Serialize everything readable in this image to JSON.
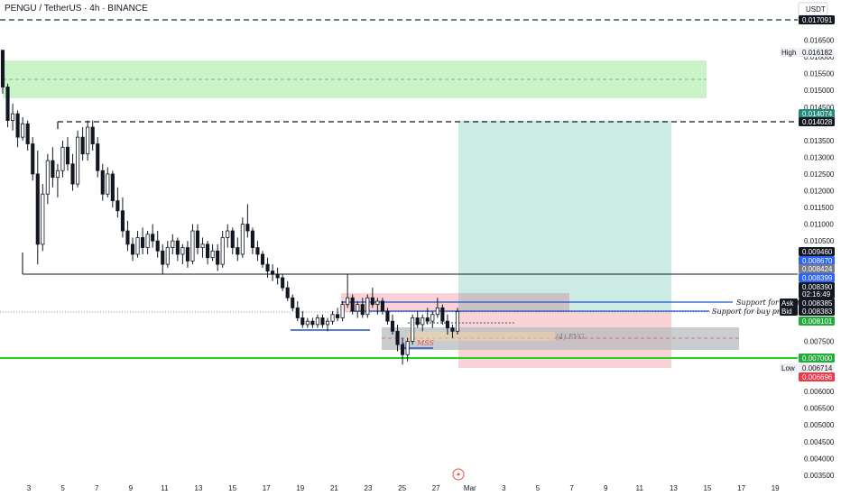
{
  "header": {
    "symbol_line": "PENGU / TetherUS · 4h · BINANCE",
    "currency": "USDT"
  },
  "colors": {
    "up_candle": "#131722",
    "down_candle": "#131722",
    "demand_zone": "#b8efb8",
    "supply_zone": "#f7c1c8",
    "target_zone": "#bfe6df",
    "stop_zone": "#f9c8cc",
    "fvg_zone": "#c8ccd0",
    "green_line": "#22d41c",
    "blue_line": "#1e53c7",
    "teal_tag": "#22897b",
    "red_tag": "#f23645",
    "green_tag": "#22ab3a",
    "blue_tag": "#2962ff",
    "gray_tag": "#787b86"
  },
  "chart_data": {
    "type": "candlestick",
    "timeframe": "4h",
    "x_tick_labels": [
      "3",
      "5",
      "7",
      "9",
      "11",
      "13",
      "15",
      "17",
      "19",
      "21",
      "23",
      "25",
      "27",
      "Mar",
      "3",
      "5",
      "7",
      "9",
      "11",
      "13",
      "15",
      "17",
      "19"
    ],
    "y_tick_labels": [
      "0.016500",
      "0.016000",
      "0.015500",
      "0.015000",
      "0.014500",
      "0.013500",
      "0.013000",
      "0.012500",
      "0.012000",
      "0.011500",
      "0.011000",
      "0.010500",
      "0.007500",
      "0.006000",
      "0.005500",
      "0.005000",
      "0.004500",
      "0.004000",
      "0.003500"
    ],
    "y_range": [
      0.0033,
      0.0174
    ],
    "price_tags": [
      {
        "text": "0.017091",
        "value": 0.017091,
        "style": "black"
      },
      {
        "text": "0.016182",
        "value": 0.016182,
        "style": "plain",
        "side_label": "High"
      },
      {
        "text": "0.014074",
        "value": 0.014074,
        "style": "teal"
      },
      {
        "text": "0.014028",
        "value": 0.014028,
        "style": "black"
      },
      {
        "text": "0.009460",
        "value": 0.00946,
        "style": "black"
      },
      {
        "text": "0.008670",
        "value": 0.00867,
        "style": "blue"
      },
      {
        "text": "0.008424",
        "value": 0.008424,
        "style": "gray"
      },
      {
        "text": "0.008399",
        "value": 0.008399,
        "style": "blue"
      },
      {
        "text": "0.008390",
        "value": 0.00839,
        "style": "black"
      },
      {
        "text": "02:16:49",
        "value": 0.00815,
        "style": "black"
      },
      {
        "text": "0.008385",
        "value": 0.008385,
        "style": "black",
        "side_label": "Ask"
      },
      {
        "text": "0.008383",
        "value": 0.008383,
        "style": "black",
        "side_label": "Bid"
      },
      {
        "text": "0.008101",
        "value": 0.008101,
        "style": "green"
      },
      {
        "text": "0.007000",
        "value": 0.007,
        "style": "green"
      },
      {
        "text": "0.006714",
        "value": 0.006714,
        "style": "plain",
        "side_label": "Low"
      },
      {
        "text": "0.006696",
        "value": 0.006696,
        "style": "red"
      }
    ],
    "horizontal_lines": [
      {
        "value": 0.017091,
        "style": "dashed",
        "color": "#0b3d1e"
      },
      {
        "value": 0.014028,
        "style": "dashed",
        "color": "#131722"
      },
      {
        "value": 0.00946,
        "style": "solid",
        "color": "#131722"
      },
      {
        "value": 0.007,
        "style": "solid",
        "color": "#22d41c"
      },
      {
        "value": 0.00839,
        "style": "dotted",
        "color": "#787b86"
      }
    ],
    "annotations": [
      {
        "text": "Support for buy progr",
        "value": 0.00867
      },
      {
        "text": "Support for buy progr",
        "value": 0.00838
      },
      {
        "text": "MSS",
        "value": 0.00743
      },
      {
        "text": "(4) FVG",
        "value": 0.0076
      }
    ],
    "candles": [
      [
        0.0162,
        0.0162,
        0.0149,
        0.0151
      ],
      [
        0.0151,
        0.0152,
        0.0139,
        0.0141
      ],
      [
        0.0141,
        0.0146,
        0.0138,
        0.0143
      ],
      [
        0.0143,
        0.0144,
        0.0133,
        0.0136
      ],
      [
        0.0136,
        0.0142,
        0.0135,
        0.014
      ],
      [
        0.014,
        0.0141,
        0.0132,
        0.0134
      ],
      [
        0.0134,
        0.0136,
        0.0123,
        0.0125
      ],
      [
        0.0125,
        0.0132,
        0.0098,
        0.0104
      ],
      [
        0.0104,
        0.0122,
        0.0102,
        0.0119
      ],
      [
        0.0119,
        0.0131,
        0.0116,
        0.0129
      ],
      [
        0.0129,
        0.0133,
        0.0121,
        0.0124
      ],
      [
        0.0124,
        0.0128,
        0.0118,
        0.0126
      ],
      [
        0.0126,
        0.0135,
        0.0124,
        0.0133
      ],
      [
        0.0133,
        0.0136,
        0.0126,
        0.0128
      ],
      [
        0.0128,
        0.0131,
        0.012,
        0.0122
      ],
      [
        0.0122,
        0.0138,
        0.0121,
        0.0136
      ],
      [
        0.0136,
        0.0139,
        0.0129,
        0.0131
      ],
      [
        0.0131,
        0.0141,
        0.0129,
        0.0139
      ],
      [
        0.0139,
        0.0141,
        0.0132,
        0.0134
      ],
      [
        0.0134,
        0.0136,
        0.0124,
        0.0126
      ],
      [
        0.0126,
        0.0128,
        0.0117,
        0.0119
      ],
      [
        0.0119,
        0.0127,
        0.0118,
        0.0125
      ],
      [
        0.0125,
        0.0126,
        0.0115,
        0.0117
      ],
      [
        0.0117,
        0.0121,
        0.0112,
        0.0114
      ],
      [
        0.0114,
        0.0118,
        0.0106,
        0.0108
      ],
      [
        0.0108,
        0.0111,
        0.0102,
        0.0104
      ],
      [
        0.0104,
        0.0106,
        0.0099,
        0.0101
      ],
      [
        0.0101,
        0.0108,
        0.01,
        0.0106
      ],
      [
        0.0106,
        0.0109,
        0.0101,
        0.0103
      ],
      [
        0.0103,
        0.0108,
        0.0101,
        0.0107
      ],
      [
        0.0107,
        0.011,
        0.0103,
        0.0105
      ],
      [
        0.0105,
        0.0108,
        0.01,
        0.0102
      ],
      [
        0.0102,
        0.0104,
        0.0095,
        0.0098
      ],
      [
        0.0098,
        0.0105,
        0.0097,
        0.0103
      ],
      [
        0.0103,
        0.0107,
        0.0101,
        0.0105
      ],
      [
        0.0105,
        0.0106,
        0.0099,
        0.0101
      ],
      [
        0.0101,
        0.0104,
        0.0098,
        0.0103
      ],
      [
        0.0103,
        0.0105,
        0.0097,
        0.0099
      ],
      [
        0.0099,
        0.011,
        0.0098,
        0.0108
      ],
      [
        0.0108,
        0.011,
        0.0101,
        0.0103
      ],
      [
        0.0103,
        0.0106,
        0.01,
        0.0104
      ],
      [
        0.0104,
        0.0105,
        0.0098,
        0.01
      ],
      [
        0.01,
        0.0104,
        0.0099,
        0.0102
      ],
      [
        0.0102,
        0.0104,
        0.0096,
        0.0098
      ],
      [
        0.0098,
        0.0108,
        0.0097,
        0.0106
      ],
      [
        0.0106,
        0.011,
        0.0103,
        0.0108
      ],
      [
        0.0108,
        0.0109,
        0.0101,
        0.0103
      ],
      [
        0.0103,
        0.0106,
        0.0099,
        0.0101
      ],
      [
        0.0101,
        0.0112,
        0.01,
        0.011
      ],
      [
        0.011,
        0.0116,
        0.0106,
        0.0108
      ],
      [
        0.0108,
        0.0109,
        0.0101,
        0.0103
      ],
      [
        0.0103,
        0.0105,
        0.0099,
        0.0101
      ],
      [
        0.0101,
        0.0102,
        0.0097,
        0.0098
      ],
      [
        0.0098,
        0.01,
        0.0094,
        0.0096
      ],
      [
        0.0096,
        0.0098,
        0.0093,
        0.0095
      ],
      [
        0.0095,
        0.0097,
        0.0092,
        0.0094
      ],
      [
        0.0094,
        0.0095,
        0.009,
        0.0091
      ],
      [
        0.0091,
        0.0093,
        0.0087,
        0.0088
      ],
      [
        0.0088,
        0.0089,
        0.0084,
        0.0085
      ],
      [
        0.0085,
        0.0087,
        0.0081,
        0.0082
      ],
      [
        0.0082,
        0.0084,
        0.0079,
        0.008
      ],
      [
        0.008,
        0.0082,
        0.0079,
        0.0081
      ],
      [
        0.0081,
        0.0082,
        0.0079,
        0.008
      ],
      [
        0.008,
        0.0083,
        0.0079,
        0.0082
      ],
      [
        0.0082,
        0.0083,
        0.0079,
        0.008
      ],
      [
        0.008,
        0.0082,
        0.0078,
        0.0081
      ],
      [
        0.0081,
        0.0084,
        0.008,
        0.0083
      ],
      [
        0.0083,
        0.0085,
        0.0081,
        0.0082
      ],
      [
        0.0082,
        0.0087,
        0.0081,
        0.0086
      ],
      [
        0.0086,
        0.0095,
        0.0085,
        0.0088
      ],
      [
        0.0088,
        0.0089,
        0.0083,
        0.0084
      ],
      [
        0.0084,
        0.0087,
        0.0082,
        0.0086
      ],
      [
        0.0086,
        0.0088,
        0.0082,
        0.0083
      ],
      [
        0.0083,
        0.0089,
        0.0082,
        0.0088
      ],
      [
        0.0088,
        0.0091,
        0.0085,
        0.0086
      ],
      [
        0.0086,
        0.0088,
        0.0083,
        0.0087
      ],
      [
        0.0087,
        0.0088,
        0.0083,
        0.0084
      ],
      [
        0.0084,
        0.0085,
        0.008,
        0.0081
      ],
      [
        0.0081,
        0.0083,
        0.0077,
        0.0078
      ],
      [
        0.0078,
        0.008,
        0.0072,
        0.0074
      ],
      [
        0.0074,
        0.0076,
        0.0068,
        0.0071
      ],
      [
        0.0071,
        0.0076,
        0.0069,
        0.0075
      ],
      [
        0.0075,
        0.0083,
        0.0074,
        0.0082
      ],
      [
        0.0082,
        0.0084,
        0.0079,
        0.008
      ],
      [
        0.008,
        0.0083,
        0.0078,
        0.0082
      ],
      [
        0.0082,
        0.0085,
        0.008,
        0.0081
      ],
      [
        0.0081,
        0.0084,
        0.0079,
        0.0083
      ],
      [
        0.0083,
        0.0088,
        0.0082,
        0.0085
      ],
      [
        0.0085,
        0.0086,
        0.008,
        0.0081
      ],
      [
        0.0081,
        0.0083,
        0.0077,
        0.0079
      ],
      [
        0.0079,
        0.008,
        0.0076,
        0.0078
      ],
      [
        0.0078,
        0.0085,
        0.0077,
        0.00839
      ]
    ]
  }
}
